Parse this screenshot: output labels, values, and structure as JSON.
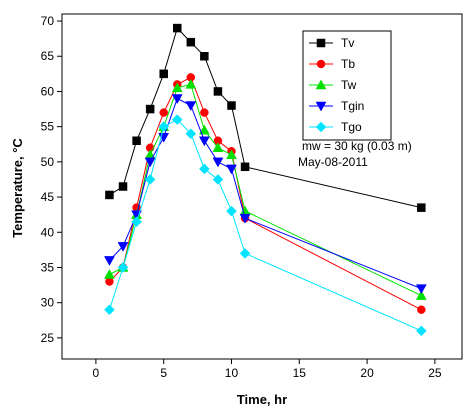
{
  "chart_data": {
    "type": "line",
    "xlabel": "Time, hr",
    "ylabel": "Temperature, °C",
    "xlim": [
      -2.5,
      27
    ],
    "ylim": [
      22,
      71
    ],
    "xticks": [
      0,
      5,
      10,
      15,
      20,
      25
    ],
    "yticks": [
      25,
      30,
      35,
      40,
      45,
      50,
      55,
      60,
      65,
      70
    ],
    "grid": false,
    "legend_position": "top-right",
    "annotations": [
      "mw = 30 kg  (0.03 m)",
      "May-08-2011"
    ],
    "series": [
      {
        "name": "Tv",
        "color": "#000000",
        "marker": "square",
        "points": [
          [
            1,
            45.3
          ],
          [
            2,
            46.5
          ],
          [
            3,
            53
          ],
          [
            4,
            57.5
          ],
          [
            5,
            62.5
          ],
          [
            6,
            69
          ],
          [
            7,
            67
          ],
          [
            8,
            65
          ],
          [
            9,
            60
          ],
          [
            10,
            58
          ],
          [
            11,
            49.3
          ],
          [
            24,
            43.5
          ]
        ]
      },
      {
        "name": "Tb",
        "color": "#ff0000",
        "marker": "circle",
        "points": [
          [
            1,
            33
          ],
          [
            2,
            35
          ],
          [
            3,
            43.5
          ],
          [
            4,
            52
          ],
          [
            5,
            57
          ],
          [
            6,
            61
          ],
          [
            7,
            62
          ],
          [
            8,
            57
          ],
          [
            9,
            53
          ],
          [
            10,
            51.5
          ],
          [
            11,
            42
          ],
          [
            24,
            29
          ]
        ]
      },
      {
        "name": "Tw",
        "color": "#00e000",
        "marker": "triangle-up",
        "points": [
          [
            1,
            34
          ],
          [
            2,
            35
          ],
          [
            3,
            42.5
          ],
          [
            4,
            51
          ],
          [
            5,
            55
          ],
          [
            6,
            60.5
          ],
          [
            7,
            61
          ],
          [
            8,
            54.5
          ],
          [
            9,
            52
          ],
          [
            10,
            51
          ],
          [
            11,
            43
          ],
          [
            24,
            31
          ]
        ]
      },
      {
        "name": "Tgin",
        "color": "#0000ff",
        "marker": "triangle-down",
        "points": [
          [
            1,
            36
          ],
          [
            2,
            38
          ],
          [
            3,
            42.5
          ],
          [
            4,
            50
          ],
          [
            5,
            53.5
          ],
          [
            6,
            59
          ],
          [
            7,
            58
          ],
          [
            8,
            53
          ],
          [
            9,
            50
          ],
          [
            10,
            49
          ],
          [
            11,
            42
          ],
          [
            24,
            32
          ]
        ]
      },
      {
        "name": "Tgo",
        "color": "#00e5ff",
        "marker": "diamond",
        "points": [
          [
            1,
            29
          ],
          [
            2,
            35
          ],
          [
            3,
            41.5
          ],
          [
            4,
            47.5
          ],
          [
            5,
            55
          ],
          [
            6,
            56
          ],
          [
            7,
            54
          ],
          [
            8,
            49
          ],
          [
            9,
            47.5
          ],
          [
            10,
            43
          ],
          [
            11,
            37
          ],
          [
            24,
            26
          ]
        ]
      }
    ]
  }
}
